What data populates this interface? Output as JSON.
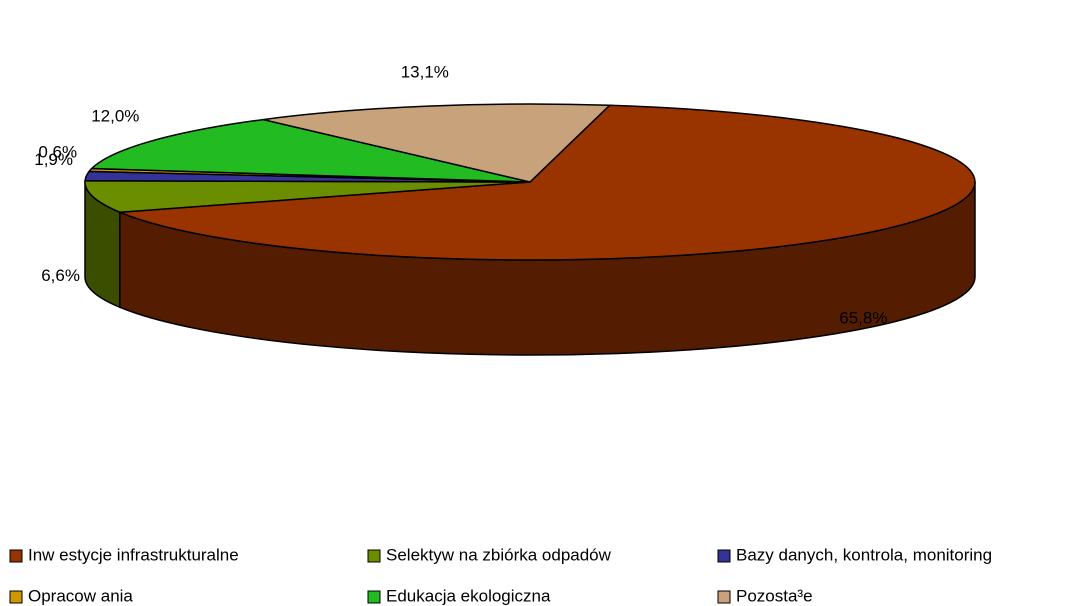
{
  "chart_data": {
    "type": "pie3d",
    "categories": [
      "Inw estycje infrastrukturalne",
      "Selektyw na zbiórka odpadów",
      "Bazy danych, kontrola, monitoring",
      "Opracow ania",
      "Edukacja ekologiczna",
      "Pozosta³e"
    ],
    "values": [
      65.8,
      6.6,
      1.9,
      0.6,
      12.0,
      13.1
    ],
    "value_labels": [
      "65,8%",
      "6,6%",
      "1,9%",
      "0,6%",
      "12,0%",
      "13,1%"
    ],
    "colors": [
      "#993300",
      "#6b8e00",
      "#333399",
      "#cc9900",
      "#22bb22",
      "#c8a27a"
    ],
    "legend": "bottom"
  }
}
